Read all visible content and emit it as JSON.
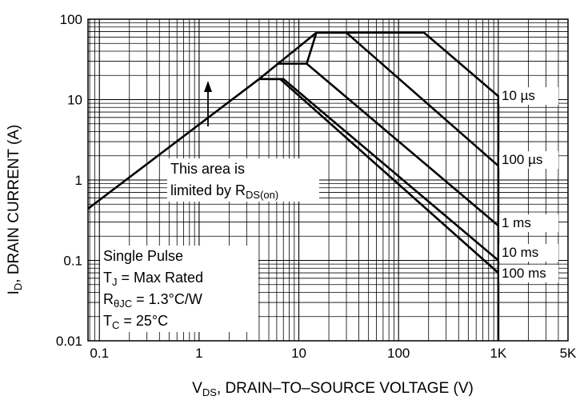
{
  "chart_data": {
    "type": "line",
    "x_scale": "log",
    "y_scale": "log",
    "xlim": [
      0.1,
      5000
    ],
    "ylim": [
      0.01,
      100
    ],
    "x_ticks": [
      "0.1",
      "1",
      "10",
      "100",
      "1K",
      "5K"
    ],
    "y_ticks": [
      "100",
      "10",
      "1",
      "0.1",
      "0.01"
    ],
    "grid": true,
    "xlabel": {
      "main": "V",
      "sub": "DS",
      "rest": ", DRAIN–TO–SOURCE VOLTAGE (V)"
    },
    "ylabel": {
      "main": "I",
      "sub": "D",
      "rest": ", DRAIN CURRENT (A)"
    },
    "series": [
      {
        "name": "10 µs",
        "points": [
          [
            0.077,
            0.44
          ],
          [
            4.0,
            18.0
          ],
          [
            15.0,
            68.0
          ],
          [
            180.0,
            68.0
          ],
          [
            1000.0,
            11.0
          ],
          [
            1000.0,
            0.01
          ]
        ]
      },
      {
        "name": "100 µs",
        "points": [
          [
            12.0,
            28.0
          ],
          [
            15.0,
            68.0
          ],
          [
            30.0,
            68.0
          ],
          [
            1000.0,
            1.5
          ]
        ]
      },
      {
        "name": "1 ms",
        "points": [
          [
            6.0,
            28.0
          ],
          [
            12.0,
            28.0
          ],
          [
            1000.0,
            0.27
          ]
        ]
      },
      {
        "name": "10 ms",
        "points": [
          [
            5.0,
            18.0
          ],
          [
            7.0,
            18.0
          ],
          [
            1000.0,
            0.1
          ]
        ]
      },
      {
        "name": "100 ms",
        "points": [
          [
            4.0,
            18.0
          ],
          [
            6.5,
            18.0
          ],
          [
            1000.0,
            0.07
          ]
        ]
      }
    ],
    "annotations": {
      "rds_on_note": {
        "line1": "This area is",
        "line2_prefix": "limited by R",
        "line2_sub": "DS(on)"
      },
      "conditions": {
        "line1": "Single Pulse",
        "line2_main": "T",
        "line2_sub": "J",
        "line2_rest": " = Max Rated",
        "line3_main": "R",
        "line3_sub": "θJC",
        "line3_rest": " = 1.3°C/W",
        "line4_main": "T",
        "line4_sub": "C",
        "line4_rest": " = 25°C"
      }
    }
  }
}
